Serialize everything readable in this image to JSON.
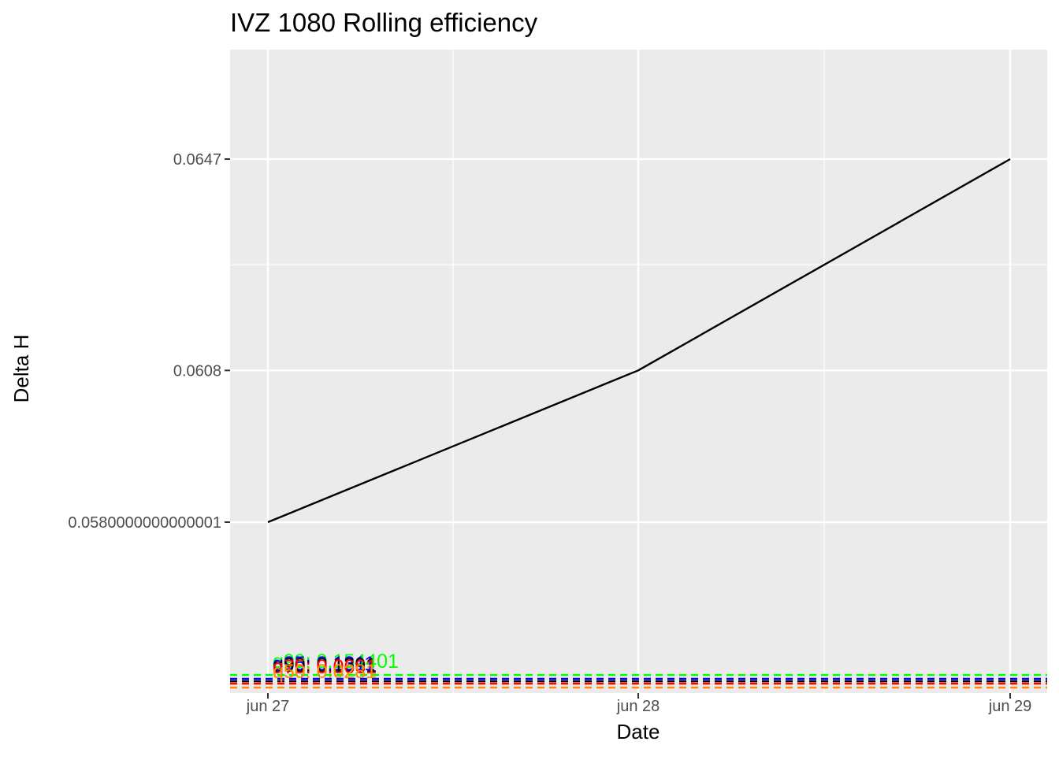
{
  "chart_data": {
    "type": "line",
    "title": "IVZ 1080 Rolling efficiency",
    "xlabel": "Date",
    "ylabel": "Delta H",
    "x": [
      "jun 27",
      "jun 28",
      "jun 29"
    ],
    "x_tick_labels": [
      "jun 27",
      "jun 28",
      "jun 29"
    ],
    "y_tick_labels": [
      "0.0580000000000001",
      "0.0608",
      "0.0647"
    ],
    "y_ticks": [
      0.0580000000000001,
      0.0608,
      0.0647
    ],
    "series": [
      {
        "color": "#000000",
        "values": [
          0.058,
          0.0608,
          0.0647
        ]
      }
    ],
    "reference_lines": [
      {
        "label": "q99: 0.154401",
        "color": "#00ff00",
        "style": "dashed"
      },
      {
        "label": "q95: 0.1311",
        "color": "#0000ff",
        "style": "dashed"
      },
      {
        "label": "q90: 0.1391",
        "color": "#000000",
        "style": "dashed"
      },
      {
        "label": "q75: 0.0661",
        "color": "#ff0000",
        "style": "dashed"
      },
      {
        "label": "q50: 0.0281",
        "color": "#ff8c00",
        "style": "dashed"
      }
    ],
    "x_range": [
      "jun 27",
      "jun 29"
    ],
    "grid": true,
    "legend": "none",
    "colors": {
      "panel_background": "#ebebeb",
      "grid": "#ffffff",
      "axis_text": "#4d4d4d",
      "title": "#000000"
    }
  }
}
